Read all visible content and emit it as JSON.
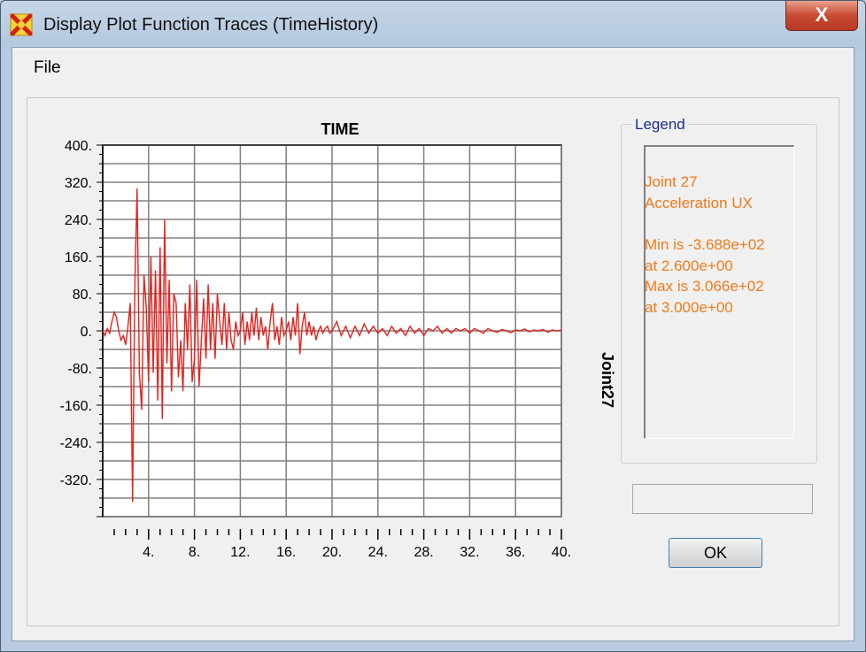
{
  "window": {
    "title": "Display Plot Function Traces  (TimeHistory)",
    "close_label": "X"
  },
  "menu": {
    "file_label": "File"
  },
  "legend": {
    "caption": "Legend",
    "lines": [
      "Joint 27",
      "Acceleration  UX"
    ],
    "stats": [
      "Min is -3.688e+02",
      "at 2.600e+00",
      "Max is 3.066e+02",
      "at 3.000e+00"
    ]
  },
  "ok_label": "OK",
  "colors": {
    "trace": "#e8201c",
    "legend_text": "#f07a1a",
    "legend_caption": "#1a2a9a"
  },
  "chart_data": {
    "type": "line",
    "title": "TIME",
    "ylabel": "Joint27",
    "xlim": [
      0,
      40
    ],
    "ylim": [
      -400,
      400
    ],
    "x_tick_labels": [
      "4.",
      "8.",
      "12.",
      "16.",
      "20.",
      "24.",
      "28.",
      "32.",
      "36.",
      "40."
    ],
    "y_tick_labels": [
      "400.",
      "320.",
      "240.",
      "160.",
      "80.",
      "0.",
      "-80.",
      "-160.",
      "-240.",
      "-320."
    ],
    "grid": true,
    "series": [
      {
        "values": [
          [
            0,
            0
          ],
          [
            0.2,
            -10
          ],
          [
            0.4,
            5
          ],
          [
            0.6,
            -5
          ],
          [
            0.8,
            20
          ],
          [
            1.0,
            40
          ],
          [
            1.2,
            30
          ],
          [
            1.4,
            0
          ],
          [
            1.6,
            -20
          ],
          [
            1.8,
            -10
          ],
          [
            2.0,
            -30
          ],
          [
            2.2,
            10
          ],
          [
            2.4,
            60
          ],
          [
            2.6,
            -368.8
          ],
          [
            2.8,
            100
          ],
          [
            3.0,
            306.6
          ],
          [
            3.2,
            -90
          ],
          [
            3.4,
            -170
          ],
          [
            3.6,
            120
          ],
          [
            3.8,
            50
          ],
          [
            4.0,
            -110
          ],
          [
            4.2,
            160
          ],
          [
            4.4,
            -90
          ],
          [
            4.6,
            130
          ],
          [
            4.8,
            -150
          ],
          [
            5.0,
            180
          ],
          [
            5.2,
            -190
          ],
          [
            5.4,
            240
          ],
          [
            5.6,
            -70
          ],
          [
            5.8,
            110
          ],
          [
            6.0,
            -130
          ],
          [
            6.2,
            80
          ],
          [
            6.4,
            60
          ],
          [
            6.6,
            -100
          ],
          [
            6.8,
            -20
          ],
          [
            7.0,
            -130
          ],
          [
            7.2,
            60
          ],
          [
            7.4,
            -40
          ],
          [
            7.6,
            100
          ],
          [
            7.8,
            -110
          ],
          [
            8.0,
            -60
          ],
          [
            8.2,
            110
          ],
          [
            8.4,
            -120
          ],
          [
            8.6,
            -20
          ],
          [
            8.8,
            70
          ],
          [
            9.0,
            -60
          ],
          [
            9.2,
            100
          ],
          [
            9.4,
            -40
          ],
          [
            9.6,
            60
          ],
          [
            9.8,
            -60
          ],
          [
            10.0,
            80
          ],
          [
            10.2,
            20
          ],
          [
            10.4,
            -30
          ],
          [
            10.6,
            60
          ],
          [
            10.8,
            -40
          ],
          [
            11.0,
            40
          ],
          [
            11.2,
            -20
          ],
          [
            11.4,
            -40
          ],
          [
            11.6,
            20
          ],
          [
            11.8,
            -10
          ],
          [
            12.0,
            0
          ],
          [
            12.2,
            40
          ],
          [
            12.4,
            -30
          ],
          [
            12.6,
            20
          ],
          [
            12.8,
            -20
          ],
          [
            13.0,
            40
          ],
          [
            13.2,
            -10
          ],
          [
            13.4,
            50
          ],
          [
            13.6,
            -20
          ],
          [
            13.8,
            30
          ],
          [
            14.0,
            -10
          ],
          [
            14.2,
            10
          ],
          [
            14.4,
            -40
          ],
          [
            14.6,
            20
          ],
          [
            14.8,
            60
          ],
          [
            15.0,
            -20
          ],
          [
            15.2,
            10
          ],
          [
            15.4,
            -30
          ],
          [
            15.6,
            30
          ],
          [
            15.8,
            -10
          ],
          [
            16.0,
            0
          ],
          [
            16.2,
            20
          ],
          [
            16.4,
            -20
          ],
          [
            16.6,
            30
          ],
          [
            16.8,
            -10
          ],
          [
            17.0,
            60
          ],
          [
            17.2,
            -50
          ],
          [
            17.4,
            10
          ],
          [
            17.6,
            40
          ],
          [
            17.8,
            -10
          ],
          [
            18.0,
            20
          ],
          [
            18.2,
            -10
          ],
          [
            18.4,
            10
          ],
          [
            18.6,
            -20
          ],
          [
            18.8,
            0
          ],
          [
            19.0,
            10
          ],
          [
            19.2,
            -5
          ],
          [
            19.4,
            5
          ],
          [
            19.6,
            10
          ],
          [
            19.8,
            -5
          ],
          [
            20.0,
            0
          ],
          [
            20.4,
            20
          ],
          [
            20.8,
            -10
          ],
          [
            21.2,
            10
          ],
          [
            21.6,
            -15
          ],
          [
            22.0,
            10
          ],
          [
            22.4,
            -10
          ],
          [
            22.8,
            15
          ],
          [
            23.2,
            -5
          ],
          [
            23.6,
            10
          ],
          [
            24.0,
            -5
          ],
          [
            24.4,
            5
          ],
          [
            24.8,
            -10
          ],
          [
            25.2,
            10
          ],
          [
            25.6,
            -5
          ],
          [
            26.0,
            5
          ],
          [
            26.4,
            -10
          ],
          [
            26.8,
            10
          ],
          [
            27.2,
            -5
          ],
          [
            27.6,
            5
          ],
          [
            28.0,
            -10
          ],
          [
            28.4,
            5
          ],
          [
            28.8,
            0
          ],
          [
            29.2,
            10
          ],
          [
            29.6,
            -5
          ],
          [
            30.0,
            5
          ],
          [
            30.4,
            -5
          ],
          [
            30.8,
            5
          ],
          [
            31.2,
            0
          ],
          [
            31.6,
            5
          ],
          [
            32.0,
            -5
          ],
          [
            32.4,
            5
          ],
          [
            32.8,
            0
          ],
          [
            33.2,
            -5
          ],
          [
            33.6,
            5
          ],
          [
            34.0,
            0
          ],
          [
            34.4,
            -3
          ],
          [
            34.8,
            3
          ],
          [
            35.2,
            0
          ],
          [
            35.6,
            -4
          ],
          [
            36.0,
            2
          ],
          [
            36.4,
            0
          ],
          [
            36.8,
            4
          ],
          [
            37.2,
            -2
          ],
          [
            37.6,
            2
          ],
          [
            38.0,
            0
          ],
          [
            38.4,
            3
          ],
          [
            38.8,
            -3
          ],
          [
            39.2,
            2
          ],
          [
            39.6,
            0
          ],
          [
            40.0,
            2
          ]
        ]
      }
    ]
  }
}
